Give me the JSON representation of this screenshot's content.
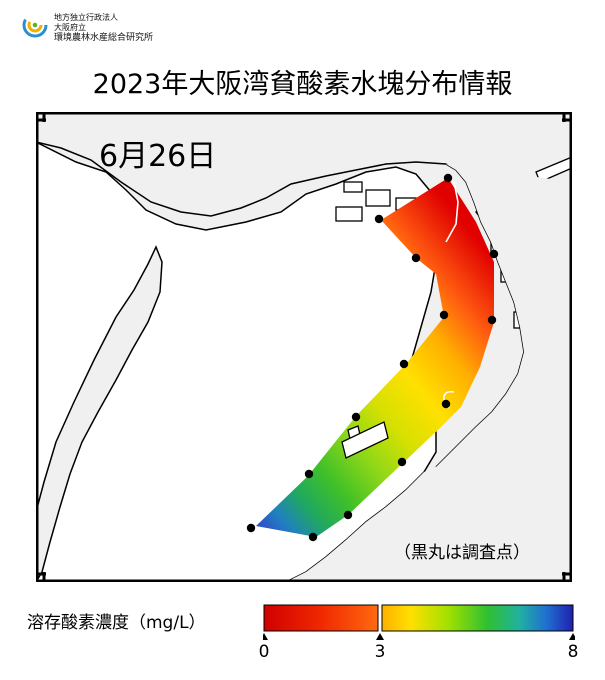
{
  "header": {
    "org_line1": "地方独立行政法人",
    "org_line2": "大阪府立",
    "org_line3": "環境農林水産総合研究所",
    "logo_icon": "osaka-research-institute-logo-icon"
  },
  "title": "2023年大阪湾貧酸素水塊分布情報",
  "map": {
    "date_label": "6月26日",
    "note": "（黒丸は調査点）",
    "stations_count_shown": 14
  },
  "legend": {
    "label": "溶存酸素濃度（mg/L）",
    "ticks": [
      "0",
      "3",
      "8"
    ],
    "range": [
      0,
      8
    ],
    "threshold": 3,
    "colors": {
      "low": "#d00000",
      "mid": "#ffd800",
      "green": "#38c020",
      "high": "#2020c0"
    }
  }
}
